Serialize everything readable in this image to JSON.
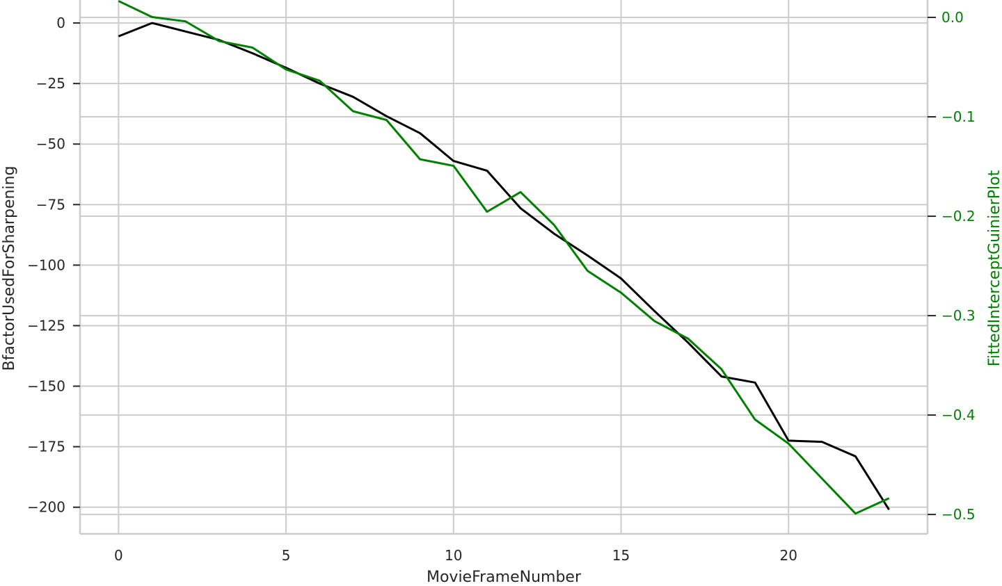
{
  "chart_data": {
    "type": "line",
    "title": "",
    "xlabel": "MovieFrameNumber",
    "ylabel": "BfactorUsedForSharpening",
    "ylabel_right": "FittedInterceptGuinierPlot",
    "xlim": [
      -1.15,
      24.15
    ],
    "ylim_left": [
      -211,
      9.5
    ],
    "ylim_right": [
      -0.5195,
      0.0175
    ],
    "x_ticks": [
      0,
      5,
      10,
      15,
      20
    ],
    "x_tick_labels": [
      "0",
      "5",
      "10",
      "15",
      "20"
    ],
    "y_left_ticks": [
      0,
      -25,
      -50,
      -75,
      -100,
      -125,
      -150,
      -175,
      -200
    ],
    "y_left_tick_labels": [
      "0",
      "−25",
      "−50",
      "−75",
      "−100",
      "−125",
      "−150",
      "−175",
      "−200"
    ],
    "y_right_ticks": [
      0.0,
      -0.1,
      -0.2,
      -0.3,
      -0.4,
      -0.5
    ],
    "y_right_tick_labels": [
      "0.0",
      "−0.1",
      "−0.2",
      "−0.3",
      "−0.4",
      "−0.5"
    ],
    "grid": true,
    "x": [
      0,
      1,
      2,
      3,
      4,
      5,
      6,
      7,
      8,
      9,
      10,
      11,
      12,
      13,
      14,
      15,
      16,
      17,
      18,
      19,
      20,
      21,
      22,
      23
    ],
    "series": [
      {
        "axis": "left",
        "color": "#000000",
        "values": [
          -5.5,
          0,
          -3.5,
          -7,
          -12.5,
          -18.5,
          -25,
          -30.5,
          -38.5,
          -45.5,
          -57,
          -61,
          -76.5,
          -87,
          -96,
          -105.5,
          -119,
          -132,
          -146,
          -148.5,
          -172.5,
          -173,
          -179,
          -201
        ]
      },
      {
        "axis": "right",
        "color": "#008000",
        "values": [
          0.0165,
          0.0004,
          -0.004,
          -0.0238,
          -0.0304,
          -0.0524,
          -0.0636,
          -0.0944,
          -0.1032,
          -0.1427,
          -0.1493,
          -0.1955,
          -0.1757,
          -0.2087,
          -0.2549,
          -0.2769,
          -0.3055,
          -0.3231,
          -0.3539,
          -0.4045,
          -0.4287,
          -0.4639,
          -0.4991,
          -0.4837
        ]
      }
    ]
  }
}
